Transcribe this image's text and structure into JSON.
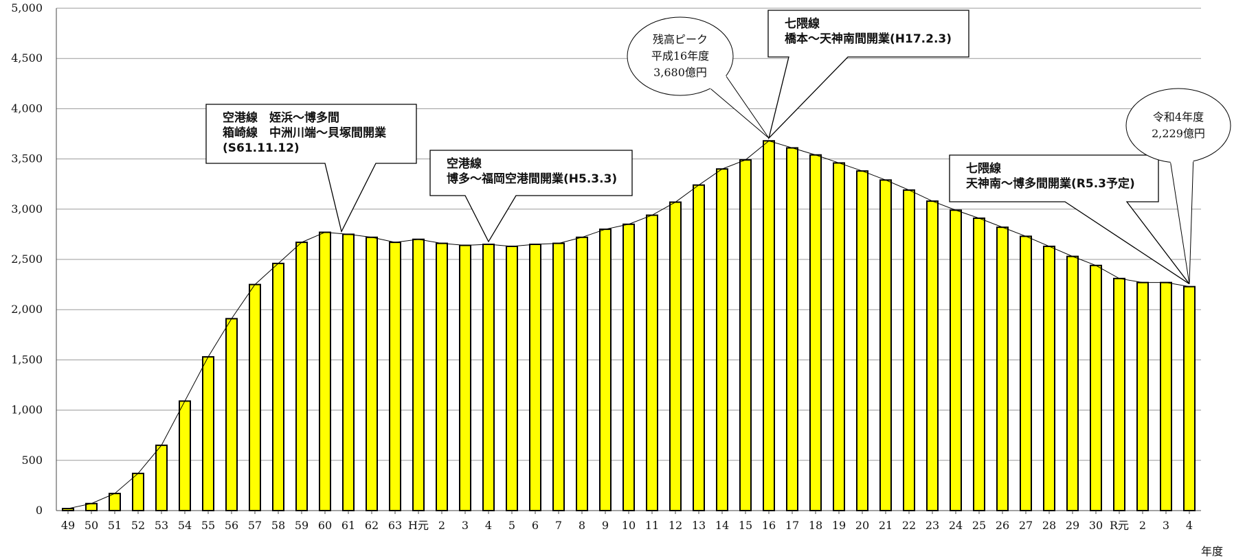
{
  "chart_data": {
    "type": "bar",
    "title": "",
    "xlabel": "年度",
    "ylabel": "",
    "ylim": [
      0,
      5000
    ],
    "yticks": [
      "0",
      "500",
      "1,000",
      "1,500",
      "2,000",
      "2,500",
      "3,000",
      "3,500",
      "4,000",
      "4,500",
      "5,000"
    ],
    "grid": true,
    "bar_color": "#ffff00",
    "categories": [
      "49",
      "50",
      "51",
      "52",
      "53",
      "54",
      "55",
      "56",
      "57",
      "58",
      "59",
      "60",
      "61",
      "62",
      "63",
      "H元",
      "2",
      "3",
      "4",
      "5",
      "6",
      "7",
      "8",
      "9",
      "10",
      "11",
      "12",
      "13",
      "14",
      "15",
      "16",
      "17",
      "18",
      "19",
      "20",
      "21",
      "22",
      "23",
      "24",
      "25",
      "26",
      "27",
      "28",
      "29",
      "30",
      "R元",
      "2",
      "3",
      "4"
    ],
    "values": [
      20,
      70,
      170,
      370,
      650,
      1090,
      1530,
      1910,
      2250,
      2460,
      2670,
      2770,
      2750,
      2720,
      2670,
      2700,
      2660,
      2640,
      2650,
      2630,
      2650,
      2660,
      2720,
      2800,
      2850,
      2940,
      3070,
      3240,
      3400,
      3490,
      3680,
      3610,
      3540,
      3460,
      3380,
      3290,
      3190,
      3080,
      2990,
      2910,
      2820,
      2730,
      2630,
      2530,
      2440,
      2310,
      2270,
      2270,
      2229
    ],
    "annotations": [
      {
        "kind": "box",
        "lines": [
          "空港線　姪浜～博多間",
          "箱崎線　中洲川端～貝塚間開業",
          "(S61.11.12)"
        ],
        "category_index": 12
      },
      {
        "kind": "box",
        "lines": [
          "空港線",
          "博多～福岡空港間開業(H5.3.3)"
        ],
        "category_index": 18
      },
      {
        "kind": "box",
        "lines": [
          "七隈線",
          "橋本～天神南間開業(H17.2.3)"
        ],
        "category_index": 30
      },
      {
        "kind": "box",
        "lines": [
          "七隈線",
          "天神南～博多間開業(R5.3予定)"
        ],
        "category_index": 48
      },
      {
        "kind": "bubble",
        "lines": [
          "残高ピーク",
          "平成16年度",
          "3,680億円"
        ],
        "category_index": 30
      },
      {
        "kind": "bubble",
        "lines": [
          "令和4年度",
          "2,229億円"
        ],
        "category_index": 48
      }
    ]
  }
}
